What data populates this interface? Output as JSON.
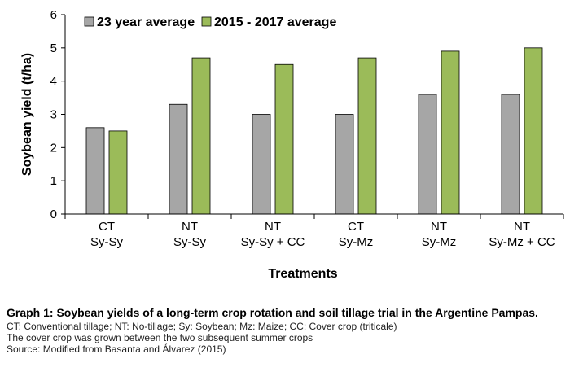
{
  "chart_data": {
    "type": "bar",
    "categories": [
      [
        "CT",
        "Sy-Sy"
      ],
      [
        "NT",
        "Sy-Sy"
      ],
      [
        "NT",
        "Sy-Sy + CC"
      ],
      [
        "CT",
        "Sy-Mz"
      ],
      [
        "NT",
        "Sy-Mz"
      ],
      [
        "NT",
        "Sy-Mz + CC"
      ]
    ],
    "series": [
      {
        "name": "23 year average",
        "color": "#a6a6a6",
        "values": [
          2.6,
          3.3,
          3.0,
          3.0,
          3.6,
          3.6
        ]
      },
      {
        "name": "2015 - 2017 average",
        "color": "#9bbb59",
        "values": [
          2.5,
          4.7,
          4.5,
          4.7,
          4.9,
          5.0
        ]
      }
    ],
    "xlabel": "Treatments",
    "ylabel": "Soybean yield (t/ha)",
    "ylim": [
      0,
      6
    ],
    "yticks": [
      0,
      1,
      2,
      3,
      4,
      5,
      6
    ],
    "grid": false,
    "legend_position": "top-left"
  },
  "caption": {
    "title": "Graph 1: Soybean yields of a long-term crop rotation and soil tillage trial in the Argentine Pampas.",
    "lines": [
      "CT: Conventional tillage; NT: No-tillage; Sy: Soybean; Mz: Maize; CC: Cover crop (triticale)",
      "The cover crop was grown between the two subsequent summer crops",
      "Source: Modified from Basanta and Álvarez (2015)"
    ]
  }
}
